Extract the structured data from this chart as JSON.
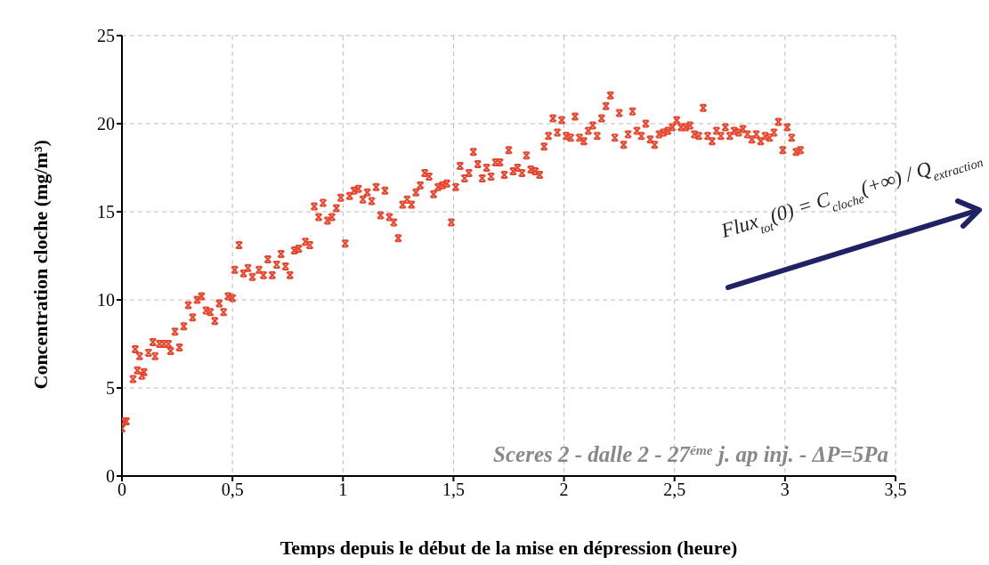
{
  "chart_data": {
    "type": "scatter",
    "xlabel": "Temps depuis le début de la mise en dépression (heure)",
    "ylabel": "Concentration cloche (mg/m³)",
    "xlim": [
      0,
      3.5
    ],
    "xticks": [
      0,
      {
        "value": 0.5,
        "label": "0,5"
      },
      1,
      {
        "value": 1.5,
        "label": "1,5"
      },
      2,
      {
        "value": 2.5,
        "label": "2,5"
      },
      3,
      {
        "value": 3.5,
        "label": "3,5"
      }
    ],
    "ylim": [
      0,
      25
    ],
    "yticks": [
      0,
      5,
      10,
      15,
      20,
      25
    ],
    "grid": true,
    "marker": "cross",
    "annotations": [
      "Sceres 2 - dalle 2 - 27$^{éme}$ j. ap inj. - ΔP=5Pa",
      "Flux$_{tot}$(0) = C$_{cloche}$(+∞) / Q$_{extraction}$"
    ],
    "series": [
      {
        "color": "#e8452c",
        "x": [
          0,
          0.01,
          0.02,
          0.05,
          0.06,
          0.07,
          0.08,
          0.09,
          0.1,
          0.12,
          0.14,
          0.15,
          0.17,
          0.19,
          0.21,
          0.22,
          0.24,
          0.26,
          0.28,
          0.3,
          0.32,
          0.34,
          0.36,
          0.38,
          0.4,
          0.42,
          0.44,
          0.46,
          0.48,
          0.5,
          0.51,
          0.53,
          0.55,
          0.57,
          0.59,
          0.62,
          0.64,
          0.66,
          0.68,
          0.7,
          0.72,
          0.74,
          0.76,
          0.78,
          0.8,
          0.83,
          0.85,
          0.87,
          0.89,
          0.91,
          0.93,
          0.95,
          0.97,
          0.99,
          1.01,
          1.03,
          1.05,
          1.07,
          1.09,
          1.11,
          1.13,
          1.15,
          1.17,
          1.19,
          1.21,
          1.23,
          1.25,
          1.27,
          1.29,
          1.31,
          1.33,
          1.35,
          1.37,
          1.39,
          1.41,
          1.43,
          1.45,
          1.47,
          1.49,
          1.51,
          1.53,
          1.55,
          1.57,
          1.59,
          1.61,
          1.63,
          1.65,
          1.67,
          1.69,
          1.71,
          1.73,
          1.75,
          1.77,
          1.79,
          1.81,
          1.83,
          1.85,
          1.87,
          1.89,
          1.91,
          1.93,
          1.95,
          1.97,
          1.99,
          2.01,
          2.03,
          2.05,
          2.07,
          2.09,
          2.11,
          2.13,
          2.15,
          2.17,
          2.19,
          2.21,
          2.23,
          2.25,
          2.27,
          2.29,
          2.31,
          2.33,
          2.35,
          2.37,
          2.39,
          2.41,
          2.43,
          2.45,
          2.47,
          2.49,
          2.51,
          2.53,
          2.55,
          2.57,
          2.59,
          2.61,
          2.63,
          2.65,
          2.67,
          2.69,
          2.71,
          2.73,
          2.75,
          2.77,
          2.79,
          2.81,
          2.83,
          2.85,
          2.87,
          2.89,
          2.91,
          2.93,
          2.95,
          2.97,
          2.99,
          3.01,
          3.03,
          3.05,
          3.07
        ],
        "values": [
          2.7,
          3.1,
          3.1,
          5.5,
          7.2,
          6.0,
          6.8,
          5.7,
          5.9,
          7.0,
          7.6,
          6.8,
          7.5,
          7.5,
          7.5,
          7.1,
          8.2,
          7.3,
          8.5,
          9.7,
          9.0,
          10.0,
          10.2,
          9.4,
          9.3,
          8.8,
          9.8,
          9.3,
          10.2,
          10.1,
          11.7,
          13.1,
          11.5,
          11.8,
          11.3,
          11.7,
          11.4,
          12.3,
          11.4,
          12.0,
          12.6,
          11.9,
          11.4,
          12.8,
          12.9,
          13.3,
          13.1,
          15.3,
          14.7,
          15.5,
          14.5,
          14.7,
          15.2,
          15.8,
          13.2,
          15.9,
          16.2,
          16.3,
          15.7,
          16.1,
          15.6,
          16.4,
          14.8,
          16.2,
          14.7,
          14.4,
          13.5,
          15.4,
          15.7,
          15.4,
          16.1,
          16.5,
          17.2,
          17.0,
          16.0,
          16.4,
          16.5,
          16.6,
          14.4,
          16.4,
          17.6,
          16.9,
          17.2,
          18.4,
          17.7,
          16.9,
          17.5,
          17.0,
          17.8,
          17.8,
          17.1,
          18.5,
          17.3,
          17.5,
          17.2,
          18.2,
          17.4,
          17.3,
          17.1,
          18.7,
          19.3,
          20.3,
          19.5,
          20.2,
          19.3,
          19.2,
          20.4,
          19.2,
          19.0,
          19.6,
          19.9,
          19.3,
          20.3,
          21.0,
          21.6,
          19.2,
          20.6,
          18.8,
          19.4,
          20.7,
          19.6,
          19.3,
          20.0,
          19.1,
          18.8,
          19.4,
          19.5,
          19.6,
          19.8,
          20.2,
          19.8,
          19.8,
          19.9,
          19.4,
          19.3,
          20.9,
          19.3,
          19.0,
          19.6,
          19.3,
          19.8,
          19.3,
          19.6,
          19.5,
          19.7,
          19.4,
          19.1,
          19.4,
          19.0,
          19.3,
          19.2,
          19.5,
          20.1,
          18.5,
          19.8,
          19.2,
          18.4,
          18.5
        ]
      }
    ]
  }
}
